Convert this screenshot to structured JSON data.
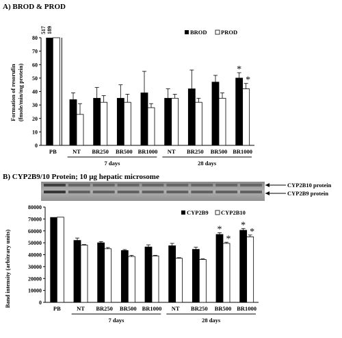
{
  "panelA": {
    "title": "A) BROD & PROD",
    "ylabel_line1": "Formation of resorufin",
    "ylabel_line2": "(fmole/min/mg protein)",
    "clip_values": [
      "517",
      "189"
    ],
    "group_labels": [
      "7 days",
      "28 days"
    ]
  },
  "panelB": {
    "title": "B) CYP2B9/10 Protein; 10 μg hepatic microsome",
    "ylabel": "Band intensity (arbitrary units)",
    "blot_labels": [
      "CYP2B10 protein",
      "CYP2B9 protein"
    ],
    "group_labels": [
      "7 days",
      "28 days"
    ]
  },
  "chart_data": [
    {
      "type": "bar",
      "title": "A) BROD & PROD",
      "ylabel": "Formation of resorufin (fmole/min/mg protein)",
      "ylim": [
        0,
        80
      ],
      "yticks": [
        "0",
        "10",
        "20",
        "30",
        "40",
        "50",
        "60",
        "70",
        "80"
      ],
      "categories": [
        "PB",
        "NT",
        "BR250",
        "BR500",
        "BR1000",
        "NT",
        "BR250",
        "BR500",
        "BR1000"
      ],
      "series": [
        {
          "name": "BROD",
          "values": [
            80,
            34,
            35,
            35,
            39,
            35,
            42,
            47,
            50
          ],
          "errors": [
            0,
            5,
            8,
            10,
            16,
            7,
            14,
            5,
            4
          ],
          "significant": [
            false,
            false,
            false,
            false,
            false,
            false,
            false,
            false,
            true
          ]
        },
        {
          "name": "PROD",
          "values": [
            80,
            23,
            32,
            32,
            28,
            35,
            32,
            35,
            42
          ],
          "errors": [
            0,
            8,
            5,
            6,
            3,
            3,
            3,
            4,
            4
          ],
          "significant": [
            false,
            false,
            false,
            false,
            false,
            false,
            false,
            false,
            true
          ]
        }
      ],
      "legend": "top-right"
    },
    {
      "type": "bar",
      "title": "B) CYP2B9/10 Protein; 10 μg hepatic microsome",
      "ylabel": "Band intensity (arbitrary units)",
      "ylim": [
        0,
        80000
      ],
      "yticks": [
        "0",
        "10000",
        "20000",
        "30000",
        "40000",
        "50000",
        "60000",
        "70000",
        "80000"
      ],
      "categories": [
        "PB",
        "NT",
        "BR250",
        "BR500",
        "BR1000",
        "NT",
        "BR250",
        "BR500",
        "BR1000"
      ],
      "series": [
        {
          "name": "CYP2B9",
          "values": [
            71500,
            52000,
            50000,
            43500,
            46500,
            47500,
            44500,
            57000,
            60500
          ],
          "errors": [
            1200,
            2000,
            1000,
            800,
            1800,
            2000,
            1800,
            1500,
            1500
          ],
          "significant": [
            false,
            false,
            false,
            false,
            false,
            false,
            false,
            true,
            true
          ]
        },
        {
          "name": "CYP2B10",
          "values": [
            71500,
            48000,
            45000,
            38500,
            39000,
            37000,
            36000,
            49500,
            55000
          ],
          "errors": [
            500,
            500,
            1000,
            1000,
            500,
            500,
            500,
            1000,
            1500
          ],
          "significant": [
            false,
            false,
            false,
            false,
            false,
            false,
            false,
            true,
            true
          ]
        }
      ],
      "legend": "top-right"
    }
  ]
}
